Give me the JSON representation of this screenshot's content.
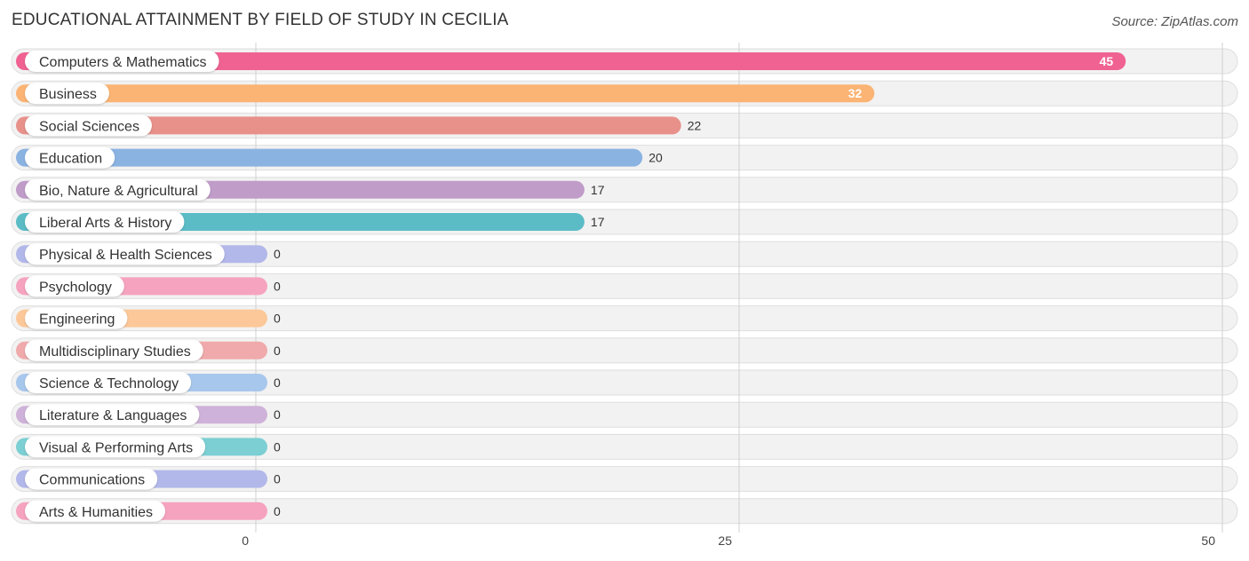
{
  "header": {
    "title": "EDUCATIONAL ATTAINMENT BY FIELD OF STUDY IN CECILIA",
    "source": "Source: ZipAtlas.com"
  },
  "chart_data": {
    "type": "bar",
    "orientation": "horizontal",
    "title": "EDUCATIONAL ATTAINMENT BY FIELD OF STUDY IN CECILIA",
    "xlim": [
      0,
      50
    ],
    "xticks": [
      0,
      25,
      50
    ],
    "grid": true,
    "categories": [
      "Computers & Mathematics",
      "Business",
      "Social Sciences",
      "Education",
      "Bio, Nature & Agricultural",
      "Liberal Arts & History",
      "Physical & Health Sciences",
      "Psychology",
      "Engineering",
      "Multidisciplinary Studies",
      "Science & Technology",
      "Literature & Languages",
      "Visual & Performing Arts",
      "Communications",
      "Arts & Humanities"
    ],
    "values": [
      45,
      32,
      22,
      20,
      17,
      17,
      0,
      0,
      0,
      0,
      0,
      0,
      0,
      0,
      0
    ],
    "colors": [
      "#f06292",
      "#fbb474",
      "#e8918b",
      "#8bb3e2",
      "#c09cc8",
      "#5bbcc6",
      "#b3b8ea",
      "#f6a3bf",
      "#fdc899",
      "#f0aaab",
      "#a8c7ec",
      "#cfb2d9",
      "#7ccfd3",
      "#b3b8ea",
      "#f6a3bf"
    ]
  }
}
